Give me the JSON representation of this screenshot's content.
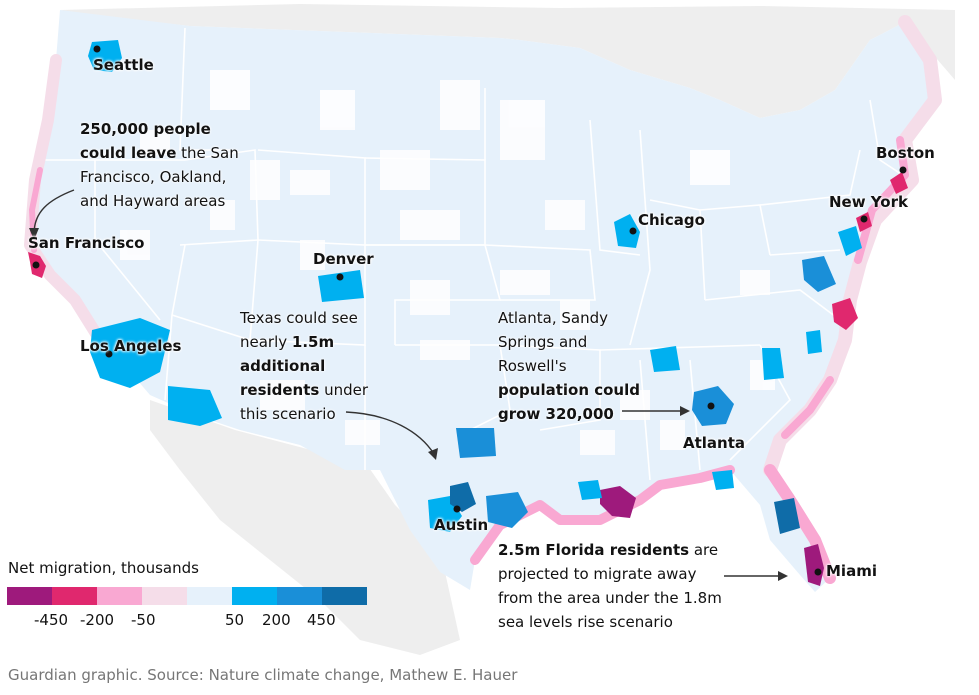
{
  "cities": [
    {
      "name": "Seattle"
    },
    {
      "name": "San Francisco"
    },
    {
      "name": "Los Angeles"
    },
    {
      "name": "Denver"
    },
    {
      "name": "Chicago"
    },
    {
      "name": "Boston"
    },
    {
      "name": "New York"
    },
    {
      "name": "Atlanta"
    },
    {
      "name": "Austin"
    },
    {
      "name": "Miami"
    }
  ],
  "annotations": {
    "sf": [
      "250,000 people",
      "could leave",
      " the San",
      "Francisco, Oakland,",
      "and Hayward areas"
    ],
    "texas": [
      "Texas could see",
      "nearly ",
      "1.5m",
      "additional",
      "residents",
      " under",
      "this scenario"
    ],
    "atlanta": [
      "Atlanta, Sandy",
      "Springs and",
      "Roswell's",
      "population could",
      "grow 320,000"
    ],
    "florida": [
      "2.5m Florida residents",
      " are",
      "projected to migrate away",
      "from the area under the 1.8m",
      "sea levels rise scenario"
    ]
  },
  "legend": {
    "title": "Net migration, thousands",
    "colors": [
      "#9e1a7c",
      "#e0286e",
      "#f9a8d2",
      "#f5dde9",
      "#e6f1fb",
      "#00b0f0",
      "#1a8fd8",
      "#0f6ca8"
    ],
    "tick_labels": [
      "-450",
      "-200",
      "-50",
      "50",
      "200",
      "450"
    ]
  },
  "footer": "Guardian graphic. Source: Nature climate change, Mathew E. Hauer",
  "colors": {
    "land": "#e6f1fb",
    "outside_land": "#eeeeee",
    "state_border": "#ffffff",
    "coast_light": "#f5dde9",
    "coast_pink": "#f9a8d2",
    "coast_magenta": "#e0286e",
    "coast_purple": "#9e1a7c",
    "gain_light": "#00b0f0",
    "gain_mid": "#1a8fd8",
    "gain_dark": "#0f6ca8"
  }
}
